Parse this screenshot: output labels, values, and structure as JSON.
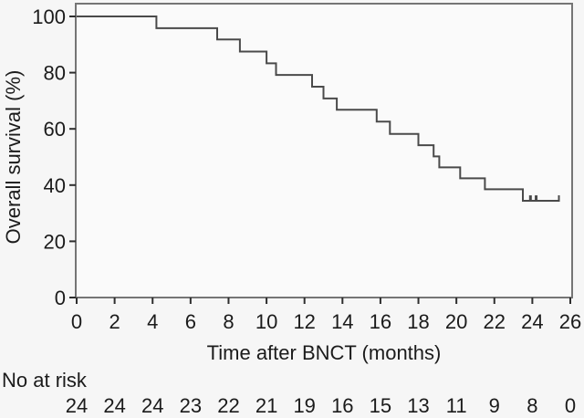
{
  "chart_data": {
    "type": "line",
    "subtype": "kaplan-meier-step",
    "title": "",
    "xlabel": "Time after BNCT (months)",
    "ylabel": "Overall survival (%)",
    "xlim": [
      0,
      26
    ],
    "ylim": [
      0,
      100
    ],
    "x_ticks": [
      0,
      2,
      4,
      6,
      8,
      10,
      12,
      14,
      16,
      18,
      20,
      22,
      24,
      26
    ],
    "y_ticks": [
      0,
      20,
      40,
      60,
      80,
      100
    ],
    "grid": false,
    "legend": false,
    "series": [
      {
        "name": "Overall survival",
        "steps": [
          [
            0,
            100
          ],
          [
            4.2,
            95.8
          ],
          [
            7.4,
            91.8
          ],
          [
            8.6,
            87.5
          ],
          [
            10.0,
            83.3
          ],
          [
            10.5,
            79.2
          ],
          [
            12.4,
            75.0
          ],
          [
            13.0,
            70.8
          ],
          [
            13.7,
            66.8
          ],
          [
            15.8,
            62.6
          ],
          [
            16.5,
            58.2
          ],
          [
            18.0,
            54.2
          ],
          [
            18.8,
            50.2
          ],
          [
            19.1,
            46.3
          ],
          [
            20.2,
            42.4
          ],
          [
            21.5,
            38.5
          ],
          [
            23.5,
            34.4
          ]
        ],
        "end_time": 25.4,
        "censor_times": [
          23.9,
          24.2
        ],
        "color": "#4a4a4a"
      }
    ],
    "risk_table": {
      "label": "No at risk",
      "times": [
        0,
        2,
        4,
        6,
        8,
        10,
        12,
        14,
        16,
        18,
        20,
        22,
        24,
        26
      ],
      "values": [
        24,
        24,
        24,
        23,
        22,
        21,
        19,
        16,
        15,
        13,
        11,
        9,
        8,
        0
      ]
    },
    "colors": {
      "axis_box": "#757575",
      "tick": "#2e2e2e",
      "text": "#1b1b1b",
      "background": "#f6f6f6",
      "plot_background": "#fafafa"
    }
  }
}
